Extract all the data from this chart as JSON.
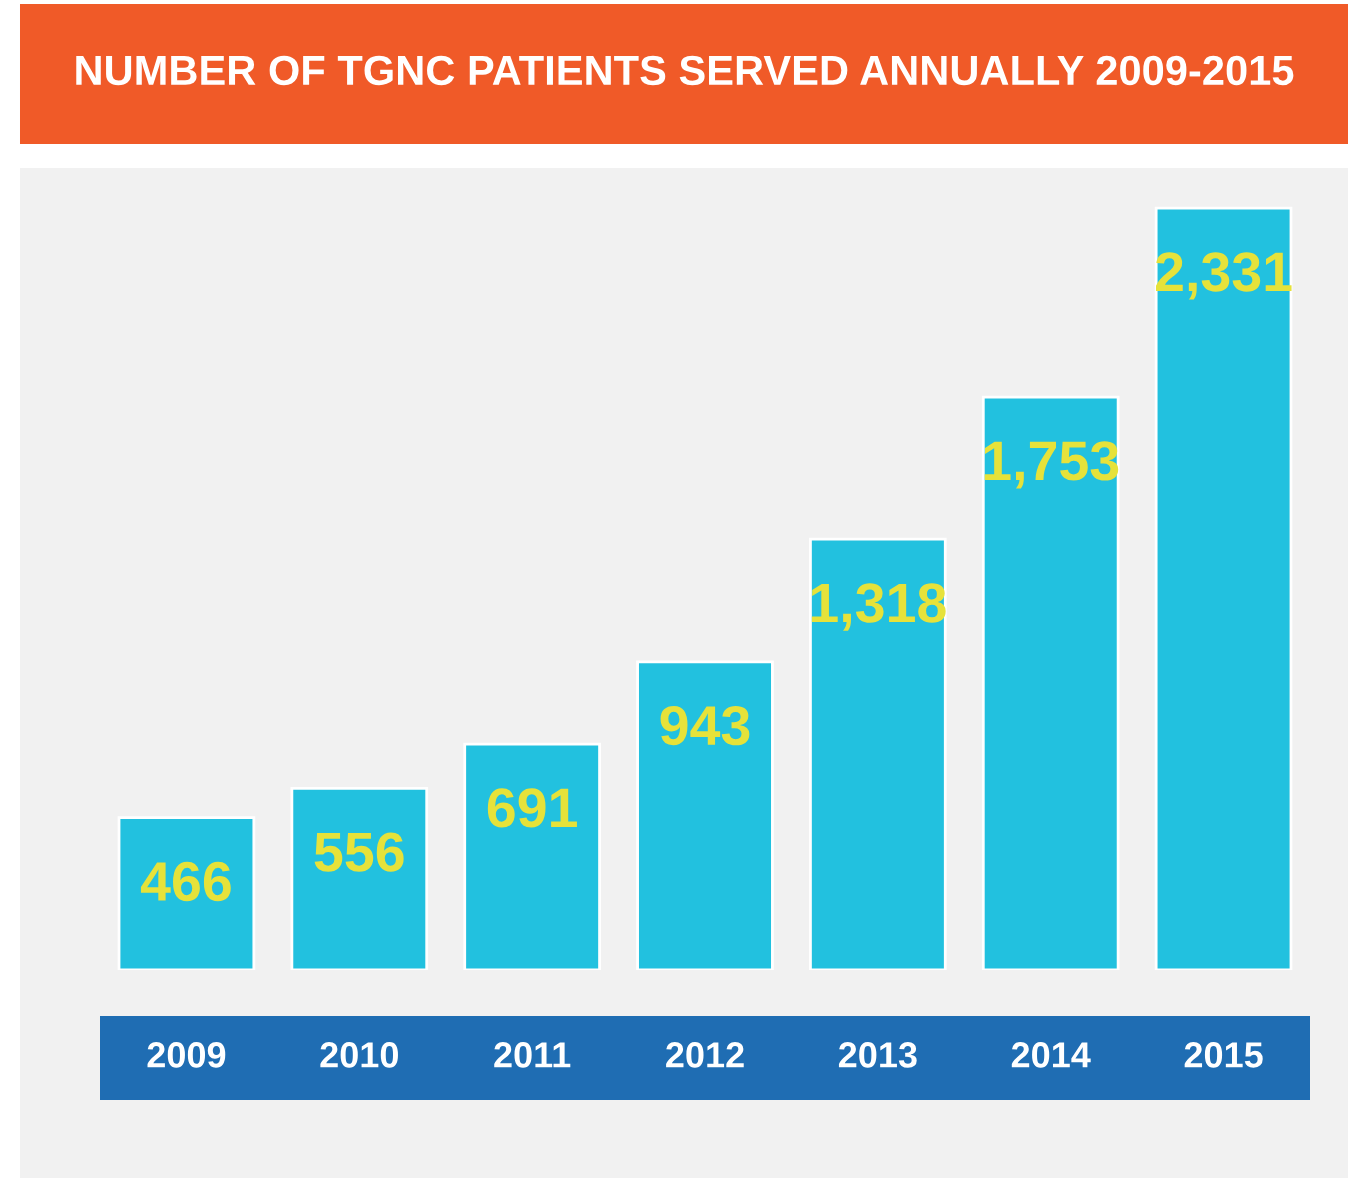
{
  "chart_data": {
    "type": "bar",
    "title": "NUMBER OF TGNC PATIENTS SERVED ANNUALLY 2009-2015",
    "categories": [
      "2009",
      "2010",
      "2011",
      "2012",
      "2013",
      "2014",
      "2015"
    ],
    "values": [
      466,
      556,
      691,
      943,
      1318,
      1753,
      2331
    ],
    "value_labels": [
      "466",
      "556",
      "691",
      "943",
      "1,318",
      "1,753",
      "2,331"
    ],
    "color": "#22c1df"
  }
}
